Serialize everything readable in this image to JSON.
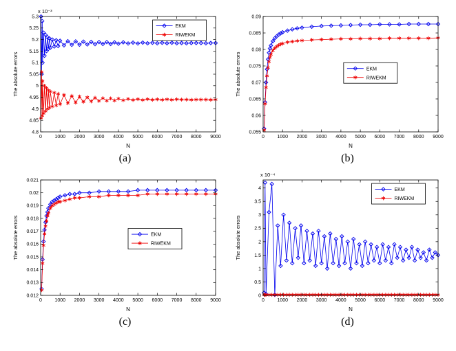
{
  "series_meta": {
    "ekm": {
      "label": "EKM",
      "color": "#0000ee",
      "marker": "diamond"
    },
    "riwekm": {
      "label": "RIWEKM",
      "color": "#ee0000",
      "marker": "star"
    }
  },
  "chart_data": [
    {
      "id": "a",
      "caption": "(a)",
      "type": "line",
      "xlabel": "N",
      "ylabel": "The absolute errors",
      "y_multiplier": "x 10⁻³",
      "xlim": [
        0,
        9000
      ],
      "ylim": [
        4.8,
        5.3
      ],
      "xticks": [
        0,
        1000,
        2000,
        3000,
        4000,
        5000,
        6000,
        7000,
        8000,
        9000
      ],
      "yticks": [
        4.8,
        4.85,
        4.9,
        4.95,
        5,
        5.05,
        5.1,
        5.15,
        5.2,
        5.25,
        5.3
      ],
      "legend": {
        "x": 0.64,
        "y": 0.03
      },
      "x": [
        20,
        50,
        80,
        100,
        150,
        200,
        250,
        300,
        350,
        400,
        450,
        500,
        600,
        700,
        800,
        900,
        1000,
        1200,
        1400,
        1600,
        1800,
        2000,
        2200,
        2400,
        2600,
        2800,
        3000,
        3200,
        3400,
        3600,
        3800,
        4000,
        4250,
        4500,
        4750,
        5000,
        5250,
        5500,
        5750,
        6000,
        6250,
        6500,
        6750,
        7000,
        7250,
        7500,
        7750,
        8000,
        8250,
        8500,
        8750,
        9000
      ],
      "series": [
        {
          "key": "ekm",
          "y": [
            5.3,
            5.05,
            5.28,
            5.1,
            5.23,
            5.13,
            5.22,
            5.15,
            5.21,
            5.16,
            5.205,
            5.165,
            5.2,
            5.17,
            5.197,
            5.172,
            5.195,
            5.175,
            5.193,
            5.177,
            5.192,
            5.178,
            5.191,
            5.179,
            5.19,
            5.18,
            5.189,
            5.181,
            5.189,
            5.181,
            5.188,
            5.182,
            5.188,
            5.183,
            5.187,
            5.183,
            5.187,
            5.184,
            5.186,
            5.184,
            5.186,
            5.184,
            5.186,
            5.184,
            5.185,
            5.184,
            5.185,
            5.185,
            5.185,
            5.184,
            5.185,
            5.185
          ]
        },
        {
          "key": "riwekm",
          "y": [
            4.86,
            5.06,
            4.87,
            5.02,
            4.88,
            5.0,
            4.89,
            4.99,
            4.9,
            4.98,
            4.905,
            4.975,
            4.91,
            4.97,
            4.915,
            4.965,
            4.92,
            4.96,
            4.924,
            4.956,
            4.927,
            4.953,
            4.93,
            4.95,
            4.932,
            4.948,
            4.934,
            4.946,
            4.935,
            4.945,
            4.936,
            4.944,
            4.937,
            4.943,
            4.938,
            4.942,
            4.938,
            4.942,
            4.939,
            4.941,
            4.939,
            4.941,
            4.939,
            4.941,
            4.94,
            4.94,
            4.939,
            4.94,
            4.94,
            4.94,
            4.939,
            4.94
          ]
        }
      ]
    },
    {
      "id": "b",
      "caption": "(b)",
      "type": "line",
      "xlabel": "N",
      "ylabel": "The absolute errors",
      "y_multiplier": "",
      "xlim": [
        0,
        9000
      ],
      "ylim": [
        0.055,
        0.09
      ],
      "xticks": [
        0,
        1000,
        2000,
        3000,
        4000,
        5000,
        6000,
        7000,
        8000,
        9000
      ],
      "yticks": [
        0.055,
        0.06,
        0.065,
        0.07,
        0.075,
        0.08,
        0.085,
        0.09
      ],
      "legend": {
        "x": 0.46,
        "y": 0.4
      },
      "x": [
        50,
        100,
        150,
        200,
        250,
        300,
        350,
        400,
        500,
        600,
        700,
        800,
        900,
        1000,
        1250,
        1500,
        1750,
        2000,
        2500,
        3000,
        3500,
        4000,
        4500,
        5000,
        5500,
        6000,
        6500,
        7000,
        7500,
        8000,
        8500,
        9000
      ],
      "series": [
        {
          "key": "ekm",
          "y": [
            0.056,
            0.064,
            0.07,
            0.074,
            0.077,
            0.079,
            0.0803,
            0.0812,
            0.0825,
            0.0834,
            0.084,
            0.0845,
            0.0849,
            0.0852,
            0.0857,
            0.0861,
            0.0864,
            0.0866,
            0.0869,
            0.0871,
            0.0872,
            0.0873,
            0.0874,
            0.0875,
            0.0875,
            0.0876,
            0.0876,
            0.0876,
            0.0877,
            0.0877,
            0.0877,
            0.0877
          ]
        },
        {
          "key": "riwekm",
          "y": [
            0.0555,
            0.0635,
            0.0685,
            0.072,
            0.0745,
            0.0763,
            0.0776,
            0.0785,
            0.0797,
            0.0804,
            0.0809,
            0.0813,
            0.0816,
            0.0818,
            0.0822,
            0.0824,
            0.0826,
            0.0827,
            0.0829,
            0.083,
            0.0831,
            0.0832,
            0.0832,
            0.0833,
            0.0833,
            0.0833,
            0.0834,
            0.0834,
            0.0834,
            0.0834,
            0.0834,
            0.0835
          ]
        }
      ]
    },
    {
      "id": "c",
      "caption": "(c)",
      "type": "line",
      "xlabel": "N",
      "ylabel": "The absolute errors",
      "y_multiplier": "",
      "xlim": [
        0,
        9000
      ],
      "ylim": [
        0.012,
        0.021
      ],
      "xticks": [
        0,
        1000,
        2000,
        3000,
        4000,
        5000,
        6000,
        7000,
        8000,
        9000
      ],
      "yticks": [
        0.012,
        0.013,
        0.014,
        0.015,
        0.016,
        0.017,
        0.018,
        0.019,
        0.02,
        0.021
      ],
      "legend": {
        "x": 0.5,
        "y": 0.42
      },
      "x": [
        50,
        100,
        150,
        200,
        250,
        300,
        350,
        400,
        500,
        600,
        700,
        800,
        900,
        1000,
        1250,
        1500,
        1750,
        2000,
        2500,
        3000,
        3500,
        4000,
        4500,
        5000,
        5500,
        6000,
        6500,
        7000,
        7500,
        8000,
        8500,
        9000
      ],
      "series": [
        {
          "key": "ekm",
          "y": [
            0.0125,
            0.0148,
            0.0162,
            0.0171,
            0.0177,
            0.0182,
            0.0185,
            0.0188,
            0.0191,
            0.0193,
            0.0194,
            0.0195,
            0.0196,
            0.0197,
            0.0198,
            0.0199,
            0.0199,
            0.02,
            0.02,
            0.0201,
            0.0201,
            0.0201,
            0.0201,
            0.0202,
            0.0202,
            0.0202,
            0.0202,
            0.0202,
            0.0202,
            0.0202,
            0.0202,
            0.0202
          ]
        },
        {
          "key": "riwekm",
          "y": [
            0.0124,
            0.0145,
            0.0159,
            0.0168,
            0.0174,
            0.0178,
            0.0182,
            0.0184,
            0.0188,
            0.019,
            0.0191,
            0.0192,
            0.0193,
            0.0193,
            0.0194,
            0.0195,
            0.0196,
            0.0196,
            0.0197,
            0.0197,
            0.0198,
            0.0198,
            0.0198,
            0.0198,
            0.0199,
            0.0199,
            0.0199,
            0.0199,
            0.0199,
            0.0199,
            0.0199,
            0.0199
          ]
        }
      ]
    },
    {
      "id": "d",
      "caption": "(d)",
      "type": "line",
      "xlabel": "N",
      "ylabel": "The absolute errors",
      "y_multiplier": "x 10⁻⁴",
      "xlim": [
        0,
        9000
      ],
      "ylim": [
        0,
        4.3
      ],
      "xticks": [
        0,
        1000,
        2000,
        3000,
        4000,
        5000,
        6000,
        7000,
        8000,
        9000
      ],
      "yticks": [
        0,
        0.5,
        1,
        1.5,
        2,
        2.5,
        3,
        3.5,
        4
      ],
      "legend": {
        "x": 0.62,
        "y": 0.03
      },
      "x": [
        50,
        100,
        150,
        300,
        450,
        600,
        750,
        900,
        1050,
        1200,
        1350,
        1500,
        1650,
        1800,
        1950,
        2100,
        2250,
        2400,
        2550,
        2700,
        2850,
        3000,
        3150,
        3300,
        3450,
        3600,
        3750,
        3900,
        4050,
        4200,
        4350,
        4500,
        4650,
        4800,
        4950,
        5100,
        5250,
        5400,
        5550,
        5700,
        5850,
        6000,
        6150,
        6300,
        6450,
        6600,
        6750,
        6900,
        7050,
        7200,
        7350,
        7500,
        7650,
        7800,
        7950,
        8100,
        8250,
        8400,
        8550,
        8700,
        8850,
        9000
      ],
      "series": [
        {
          "key": "ekm",
          "y": [
            0.1,
            4.2,
            0.05,
            3.1,
            4.15,
            0.02,
            2.6,
            1.1,
            3.0,
            1.3,
            2.7,
            1.2,
            2.5,
            1.4,
            2.6,
            1.2,
            2.4,
            1.3,
            2.3,
            1.1,
            2.4,
            1.2,
            2.2,
            1.0,
            2.3,
            1.2,
            2.1,
            1.1,
            2.2,
            1.2,
            2.0,
            1.0,
            2.1,
            1.2,
            1.9,
            1.1,
            2.0,
            1.2,
            1.9,
            1.3,
            1.8,
            1.2,
            1.9,
            1.3,
            1.8,
            1.2,
            1.9,
            1.4,
            1.8,
            1.3,
            1.7,
            1.4,
            1.8,
            1.3,
            1.7,
            1.4,
            1.6,
            1.3,
            1.7,
            1.4,
            1.6,
            1.5
          ]
        },
        {
          "key": "riwekm",
          "y": [
            0.02,
            0.02,
            0.02,
            0.02,
            0.02,
            0.02,
            0.02,
            0.02,
            0.02,
            0.02,
            0.02,
            0.02,
            0.02,
            0.02,
            0.02,
            0.02,
            0.02,
            0.02,
            0.02,
            0.02,
            0.02,
            0.02,
            0.02,
            0.02,
            0.02,
            0.02,
            0.02,
            0.02,
            0.02,
            0.02,
            0.02,
            0.02,
            0.02,
            0.02,
            0.02,
            0.02,
            0.02,
            0.02,
            0.02,
            0.02,
            0.02,
            0.02,
            0.02,
            0.02,
            0.02,
            0.02,
            0.02,
            0.02,
            0.02,
            0.02,
            0.02,
            0.02,
            0.02,
            0.02,
            0.02,
            0.02,
            0.02,
            0.02,
            0.02,
            0.02,
            0.02,
            0.02
          ]
        }
      ]
    }
  ]
}
